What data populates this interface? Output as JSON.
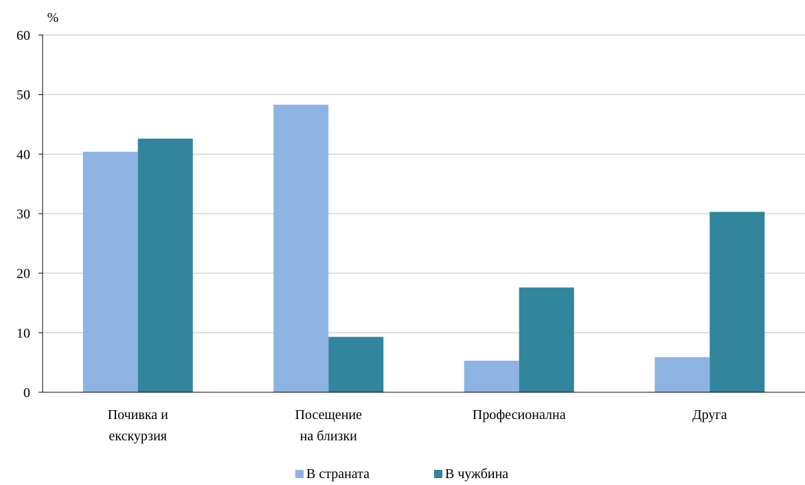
{
  "chart_data": {
    "type": "bar",
    "unit_label": "%",
    "categories": [
      [
        "Почивка и",
        "екскурзия"
      ],
      [
        "Посещение",
        "на близки"
      ],
      [
        "Професионална"
      ],
      [
        "Друга"
      ]
    ],
    "series": [
      {
        "name": "В страната",
        "color": "#8db3e2",
        "values": [
          40.4,
          48.3,
          5.3,
          5.9
        ]
      },
      {
        "name": "В чужбина",
        "color": "#31859c",
        "values": [
          42.6,
          9.3,
          17.6,
          30.3
        ]
      }
    ],
    "ylim": [
      0,
      60
    ],
    "yticks": [
      0,
      10,
      20,
      30,
      40,
      50,
      60
    ],
    "grid": true,
    "legend_position": "bottom"
  }
}
